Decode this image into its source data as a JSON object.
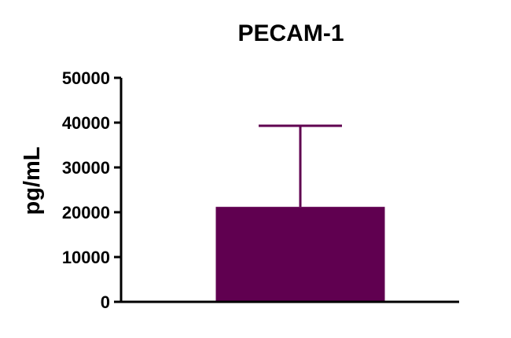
{
  "chart_data": {
    "type": "bar",
    "title": "PECAM-1",
    "xlabel": "",
    "ylabel": "pg/mL",
    "ylim": [
      0,
      50000
    ],
    "yticks": [
      0,
      10000,
      20000,
      30000,
      40000,
      50000
    ],
    "ytick_labels": [
      "0",
      "10000",
      "20000",
      "30000",
      "40000",
      "50000"
    ],
    "categories": [
      ""
    ],
    "values": [
      21200
    ],
    "error_upper": [
      39300
    ],
    "grid": false,
    "legend": "none",
    "colors": {
      "bar": "#600050",
      "axis": "#000000",
      "text": "#000000"
    }
  }
}
